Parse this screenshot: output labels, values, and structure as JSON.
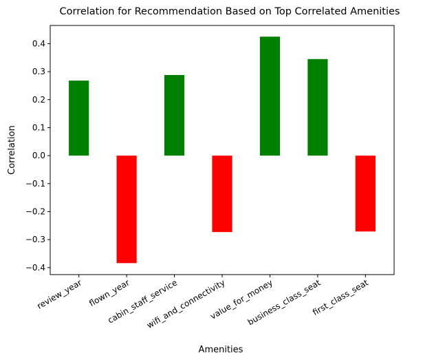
{
  "chart_data": {
    "type": "bar",
    "title": "Correlation for Recommendation Based on Top Correlated Amenities",
    "xlabel": "Amenities",
    "ylabel": "Correlation",
    "categories": [
      "review_year",
      "flown_year",
      "cabin_staff_service",
      "wifi_and_connectivity",
      "value_for_money",
      "business_class_seat",
      "first_class_seat"
    ],
    "values": [
      0.268,
      -0.384,
      0.288,
      -0.273,
      0.425,
      0.345,
      -0.271
    ],
    "ylim": [
      -0.425,
      0.465
    ],
    "yticks": [
      -0.4,
      -0.3,
      -0.2,
      -0.1,
      0.0,
      0.1,
      0.2,
      0.3,
      0.4
    ],
    "ytick_labels": [
      "−0.4",
      "−0.3",
      "−0.2",
      "−0.1",
      "0.0",
      "0.1",
      "0.2",
      "0.3",
      "0.4"
    ],
    "positive_color": "#008000",
    "negative_color": "#ff0000",
    "grid": false,
    "legend": "none"
  }
}
